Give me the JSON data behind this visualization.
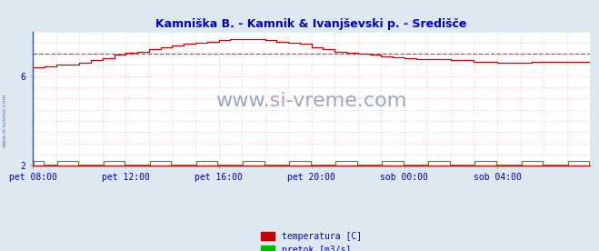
{
  "title": "Kamniška B. - Kamnik & Ivanjševski p. - Središče",
  "title_color": "#0000cc",
  "bg_color": "#dde8f0",
  "plot_bg_color": "#ffffff",
  "xlabel_color": "#0000cc",
  "watermark": "www.si-vreme.com",
  "watermark_color": "#8899bb",
  "xlim": [
    0,
    288
  ],
  "ylim": [
    2,
    8
  ],
  "xtick_labels": [
    "pet 08:00",
    "pet 12:00",
    "pet 16:00",
    "pet 20:00",
    "sob 00:00",
    "sob 04:00"
  ],
  "xtick_positions": [
    0,
    48,
    96,
    144,
    192,
    240
  ],
  "ytick_labels": [
    "2",
    "6"
  ],
  "ytick_positions": [
    2,
    6
  ],
  "temp_color": "#cc0000",
  "flow_color": "#00bb00",
  "purple_color": "#8844aa",
  "temp_avg_line": 7.0,
  "temp_avg_color": "#dd4444",
  "legend_temp_label": "temperatura [C]",
  "legend_flow_label": "pretok [m3/s]",
  "grid_dot_color": "#ffaaaa",
  "side_label": "www.si-vreme.com",
  "spine_left_color": "#2255cc",
  "spine_bottom_color": "#cc0000"
}
